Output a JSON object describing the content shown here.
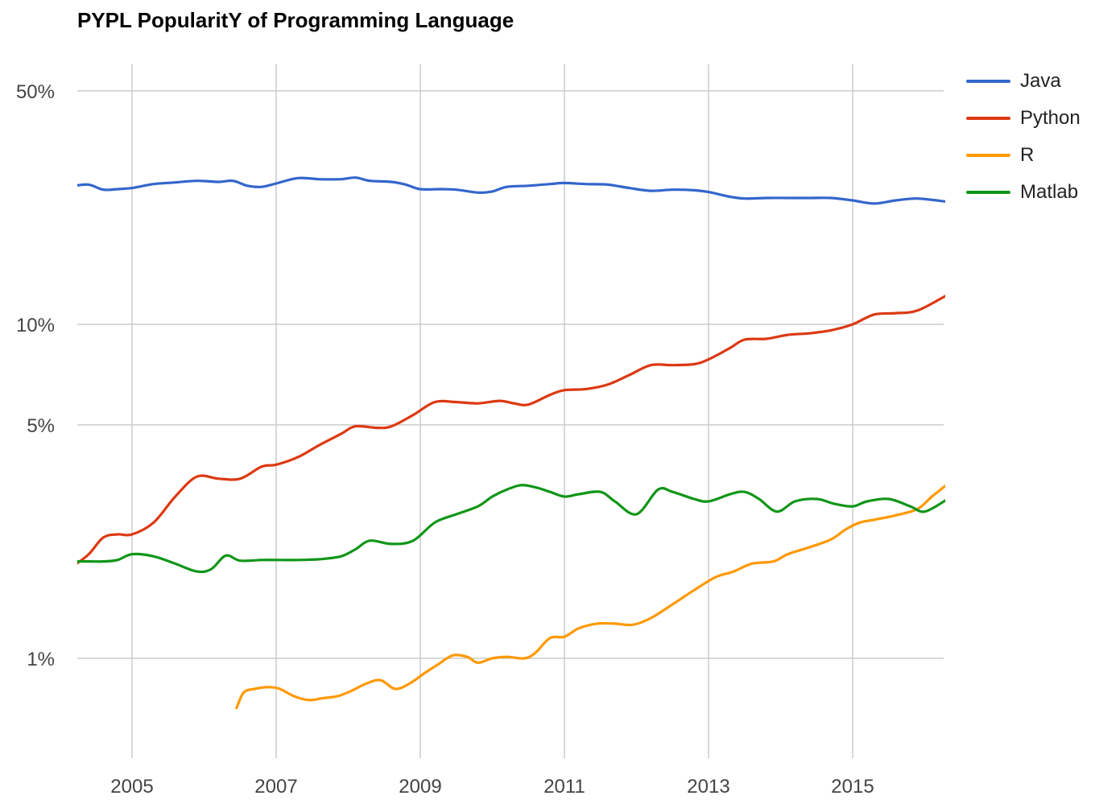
{
  "chart_data": {
    "type": "line",
    "title": "PYPL PopularitY of Programming Language",
    "xlabel": "",
    "ylabel": "",
    "y_scale": "log",
    "ylim": [
      0.7,
      58
    ],
    "xlim": [
      2004.2,
      2016.3
    ],
    "y_ticks": [
      {
        "value": 50,
        "label": "50%"
      },
      {
        "value": 10,
        "label": "10%"
      },
      {
        "value": 5,
        "label": "5%"
      },
      {
        "value": 1,
        "label": "1%"
      }
    ],
    "x_ticks": [
      {
        "value": 2005,
        "label": "2005"
      },
      {
        "value": 2007,
        "label": "2007"
      },
      {
        "value": 2009,
        "label": "2009"
      },
      {
        "value": 2011,
        "label": "2011"
      },
      {
        "value": 2013,
        "label": "2013"
      },
      {
        "value": 2015,
        "label": "2015"
      }
    ],
    "grid": true,
    "legend_position": "right",
    "series": [
      {
        "name": "Java",
        "color": "#3366cc",
        "x": [
          2004.2,
          2004.4,
          2004.6,
          2004.8,
          2005.0,
          2005.3,
          2005.6,
          2005.9,
          2006.2,
          2006.4,
          2006.6,
          2006.8,
          2007.0,
          2007.3,
          2007.6,
          2007.9,
          2008.1,
          2008.3,
          2008.6,
          2008.8,
          2009.0,
          2009.3,
          2009.5,
          2009.8,
          2010.0,
          2010.2,
          2010.5,
          2010.8,
          2011.0,
          2011.3,
          2011.6,
          2011.9,
          2012.2,
          2012.5,
          2012.8,
          2013.0,
          2013.3,
          2013.5,
          2013.8,
          2014.1,
          2014.4,
          2014.7,
          2015.0,
          2015.3,
          2015.6,
          2015.9,
          2016.3
        ],
        "values": [
          26.0,
          26.2,
          25.3,
          25.4,
          25.6,
          26.3,
          26.6,
          26.9,
          26.7,
          26.9,
          26.0,
          25.8,
          26.4,
          27.4,
          27.2,
          27.2,
          27.5,
          26.9,
          26.7,
          26.2,
          25.4,
          25.4,
          25.3,
          24.8,
          25.0,
          25.8,
          26.0,
          26.3,
          26.5,
          26.3,
          26.2,
          25.6,
          25.1,
          25.3,
          25.2,
          24.9,
          24.1,
          23.8,
          23.9,
          23.9,
          23.9,
          23.9,
          23.5,
          23.0,
          23.5,
          23.8,
          23.3
        ]
      },
      {
        "name": "Python",
        "color": "#dc3912",
        "x": [
          2004.2,
          2004.4,
          2004.6,
          2004.8,
          2005.0,
          2005.3,
          2005.6,
          2005.9,
          2006.2,
          2006.5,
          2006.8,
          2007.0,
          2007.3,
          2007.6,
          2007.9,
          2008.1,
          2008.4,
          2008.6,
          2008.9,
          2009.2,
          2009.5,
          2009.8,
          2010.1,
          2010.3,
          2010.5,
          2010.8,
          2011.0,
          2011.3,
          2011.6,
          2011.9,
          2012.2,
          2012.5,
          2012.8,
          2013.0,
          2013.3,
          2013.5,
          2013.8,
          2014.1,
          2014.4,
          2014.7,
          2015.0,
          2015.3,
          2015.6,
          2015.9,
          2016.3
        ],
        "values": [
          1.9,
          2.05,
          2.3,
          2.35,
          2.35,
          2.55,
          3.05,
          3.5,
          3.45,
          3.45,
          3.75,
          3.8,
          4.0,
          4.35,
          4.7,
          4.95,
          4.9,
          4.95,
          5.35,
          5.85,
          5.85,
          5.8,
          5.9,
          5.8,
          5.75,
          6.15,
          6.35,
          6.4,
          6.6,
          7.05,
          7.55,
          7.55,
          7.6,
          7.85,
          8.5,
          9.0,
          9.05,
          9.3,
          9.4,
          9.6,
          10.0,
          10.7,
          10.8,
          11.0,
          12.2
        ]
      },
      {
        "name": "R",
        "color": "#ff9900",
        "x": [
          2006.45,
          2006.55,
          2006.7,
          2006.9,
          2007.05,
          2007.25,
          2007.45,
          2007.65,
          2007.85,
          2008.05,
          2008.25,
          2008.45,
          2008.65,
          2008.85,
          2009.05,
          2009.25,
          2009.45,
          2009.65,
          2009.8,
          2010.0,
          2010.2,
          2010.45,
          2010.6,
          2010.8,
          2011.0,
          2011.2,
          2011.45,
          2011.7,
          2011.95,
          2012.2,
          2012.5,
          2012.8,
          2013.1,
          2013.35,
          2013.6,
          2013.9,
          2014.1,
          2014.4,
          2014.7,
          2014.9,
          2015.1,
          2015.3,
          2015.6,
          2015.9,
          2016.1,
          2016.3
        ],
        "values": [
          0.71,
          0.79,
          0.81,
          0.82,
          0.81,
          0.77,
          0.75,
          0.76,
          0.77,
          0.8,
          0.84,
          0.86,
          0.81,
          0.84,
          0.9,
          0.96,
          1.02,
          1.01,
          0.97,
          1.0,
          1.01,
          1.0,
          1.04,
          1.15,
          1.16,
          1.23,
          1.27,
          1.27,
          1.26,
          1.32,
          1.45,
          1.6,
          1.75,
          1.82,
          1.92,
          1.95,
          2.05,
          2.15,
          2.27,
          2.43,
          2.55,
          2.6,
          2.68,
          2.8,
          3.05,
          3.3
        ]
      },
      {
        "name": "Matlab",
        "color": "#109618",
        "x": [
          2004.2,
          2004.4,
          2004.6,
          2004.8,
          2005.0,
          2005.3,
          2005.6,
          2005.9,
          2006.1,
          2006.3,
          2006.5,
          2006.8,
          2007.0,
          2007.3,
          2007.6,
          2007.9,
          2008.1,
          2008.3,
          2008.6,
          2008.9,
          2009.2,
          2009.5,
          2009.8,
          2010.0,
          2010.2,
          2010.4,
          2010.6,
          2010.8,
          2011.0,
          2011.2,
          2011.5,
          2011.7,
          2012.0,
          2012.3,
          2012.5,
          2012.8,
          2013.0,
          2013.3,
          2013.5,
          2013.7,
          2013.95,
          2014.2,
          2014.5,
          2014.75,
          2015.0,
          2015.2,
          2015.5,
          2015.8,
          2016.0,
          2016.3
        ],
        "values": [
          1.95,
          1.95,
          1.95,
          1.97,
          2.05,
          2.02,
          1.92,
          1.82,
          1.85,
          2.03,
          1.96,
          1.97,
          1.97,
          1.97,
          1.98,
          2.02,
          2.12,
          2.25,
          2.2,
          2.25,
          2.55,
          2.7,
          2.85,
          3.05,
          3.2,
          3.3,
          3.25,
          3.15,
          3.05,
          3.1,
          3.15,
          2.95,
          2.7,
          3.2,
          3.15,
          3.0,
          2.95,
          3.1,
          3.15,
          3.0,
          2.75,
          2.95,
          3.0,
          2.9,
          2.85,
          2.95,
          3.0,
          2.85,
          2.75,
          2.98
        ]
      }
    ]
  }
}
